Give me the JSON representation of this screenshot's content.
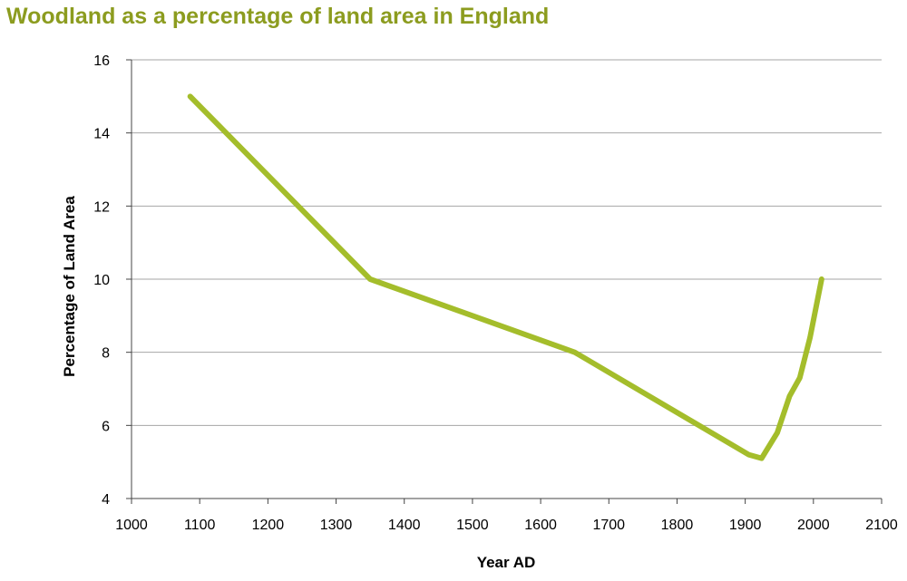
{
  "chart_data": {
    "type": "line",
    "title": "Woodland as a percentage of land area in England",
    "xlabel": "Year AD",
    "ylabel": "Percentage of Land Area",
    "xlim": [
      1000,
      2100
    ],
    "ylim": [
      4,
      16
    ],
    "xticks": [
      1000,
      1100,
      1200,
      1300,
      1400,
      1500,
      1600,
      1700,
      1800,
      1900,
      2000,
      2100
    ],
    "yticks": [
      4,
      6,
      8,
      10,
      12,
      14,
      16
    ],
    "grid": "horizontal",
    "line_color": "#a4bd2b",
    "x": [
      1086,
      1350,
      1650,
      1905,
      1924,
      1947,
      1965,
      1980,
      1995,
      2012
    ],
    "y": [
      15,
      10,
      8,
      5.2,
      5.1,
      5.8,
      6.8,
      7.3,
      8.4,
      10
    ]
  }
}
